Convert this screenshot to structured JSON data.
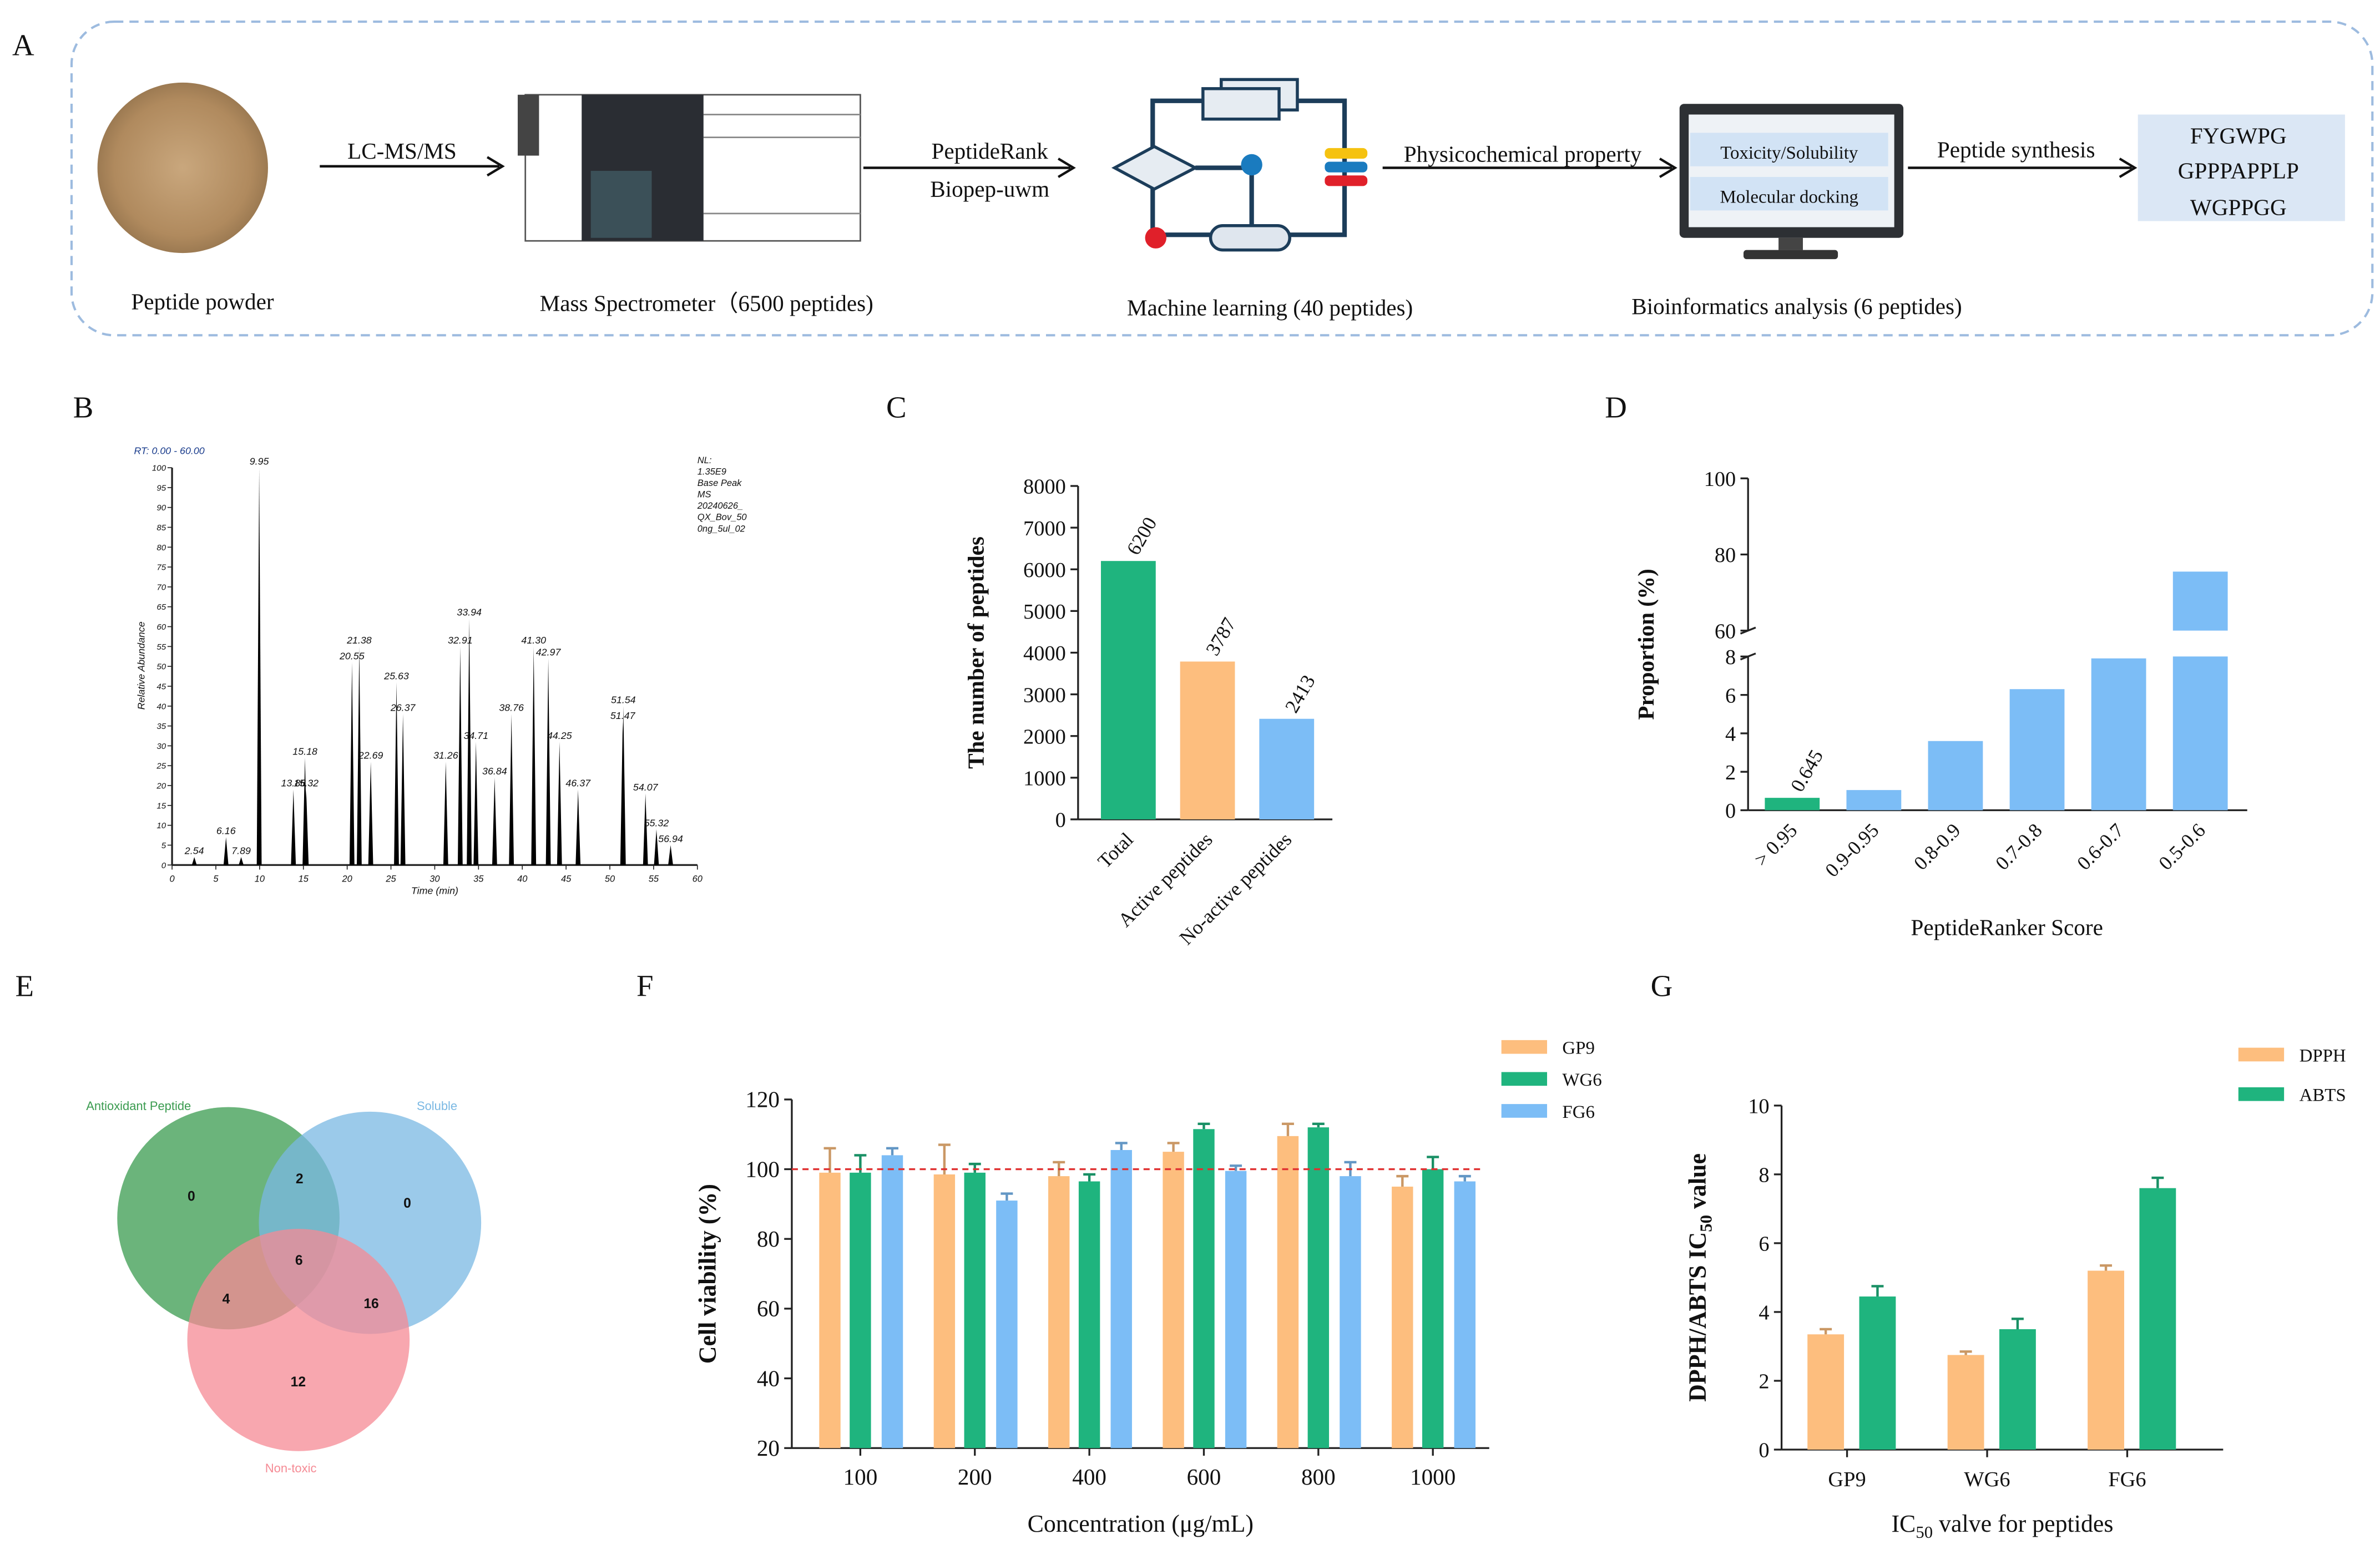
{
  "figure_a": {
    "panel": "A",
    "steps": [
      "Peptide powder",
      "Mass Spectrometer（6500 peptides)",
      "Machine learning (40 peptides)",
      "Bioinformatics analysis (6 peptides)"
    ],
    "arrows": [
      [
        "LC-MS/MS"
      ],
      [
        "PeptideRank",
        "Biopep-uwm"
      ],
      [
        "Physicochemical property"
      ],
      [
        "Peptide synthesis"
      ]
    ],
    "screen": [
      "Toxicity/Solubility",
      "Molecular docking"
    ],
    "peptides": [
      "FYGWPG",
      "GPPPAPPLP",
      "WGPPGG"
    ]
  },
  "chart_data": [
    {
      "panel": "B",
      "type": "line",
      "header": "RT: 0.00 - 60.00",
      "info": [
        "NL:",
        "1.35E9",
        "Base Peak",
        "MS",
        "20240626_",
        "QX_Bov_50",
        "0ng_5ul_02"
      ],
      "x_label": "Time (min)",
      "y_label": "Relative Abundance",
      "x": [
        2.54,
        6.16,
        7.89,
        9.95,
        13.86,
        15.18,
        15.32,
        20.55,
        21.38,
        22.69,
        25.63,
        26.37,
        31.26,
        32.91,
        33.94,
        34.71,
        36.84,
        38.76,
        41.3,
        42.97,
        44.25,
        46.37,
        51.47,
        51.54,
        54.07,
        55.32,
        56.94
      ],
      "peak_labels": [
        "2.54",
        "6.16",
        "7.89",
        "9.95",
        "13.86",
        "15.18",
        "15.32",
        "20.55",
        "21.38",
        "22.69",
        "25.63",
        "26.37",
        "31.26",
        "32.91",
        "33.94",
        "34.71",
        "36.84",
        "38.76",
        "41.30",
        "42.97",
        "44.25",
        "46.37",
        "51.47",
        "51.54",
        "54.07",
        "55.32",
        "56.94"
      ],
      "values": [
        2,
        7,
        2,
        100,
        19,
        27,
        19,
        51,
        55,
        26,
        46,
        38,
        26,
        55,
        62,
        31,
        22,
        38,
        55,
        52,
        31,
        19,
        36,
        40,
        18,
        9,
        5
      ],
      "color": "#000000",
      "xlim": [
        0,
        60
      ],
      "xticks": [
        0,
        5,
        10,
        15,
        20,
        25,
        30,
        35,
        40,
        45,
        50,
        55,
        60
      ],
      "ylim": [
        0,
        100
      ],
      "yticks": [
        0,
        5,
        10,
        15,
        20,
        25,
        30,
        35,
        40,
        45,
        50,
        55,
        60,
        65,
        70,
        75,
        80,
        85,
        90,
        95,
        100
      ]
    },
    {
      "panel": "C",
      "type": "bar",
      "y_label": "The number of peptides",
      "categories": [
        "Total",
        "Active peptides",
        "No-active peptides"
      ],
      "values": [
        6200,
        3787,
        2413
      ],
      "colors": [
        "#1fb47e",
        "#fdbe7e",
        "#7cbdf6"
      ],
      "ylim": [
        0,
        8000
      ],
      "yticks": [
        0,
        1000,
        2000,
        3000,
        4000,
        5000,
        6000,
        7000,
        8000
      ]
    },
    {
      "panel": "D",
      "type": "bar",
      "y_label": "Proportion (%)",
      "x_label": "PeptideRanker Score",
      "categories": [
        "> 0.95",
        "0.9-0.95",
        "0.8-0.9",
        "0.7-0.8",
        "0.6-0.7",
        "0.5-0.6"
      ],
      "values": [
        0.645,
        1.05,
        3.6,
        6.3,
        7.9,
        75.5
      ],
      "value_labels": [
        "0.645",
        null,
        null,
        null,
        null,
        null
      ],
      "colors": [
        "#1fb47e",
        "#7cbdf6",
        "#7cbdf6",
        "#7cbdf6",
        "#7cbdf6",
        "#7cbdf6"
      ],
      "ylim": [
        0,
        100
      ],
      "axis_break": [
        8,
        60
      ],
      "yticks": [
        0,
        2,
        4,
        6,
        8,
        60,
        80,
        100
      ]
    },
    {
      "panel": "E",
      "type": "venn",
      "sets": [
        {
          "name": "Antioxidant Peptide",
          "color": "#3a9b4f"
        },
        {
          "name": "Soluble",
          "color": "#7ab8e3"
        },
        {
          "name": "Non-toxic",
          "color": "#f58a94"
        }
      ],
      "regions": [
        {
          "sets": [
            0
          ],
          "value": 0
        },
        {
          "sets": [
            1
          ],
          "value": 0
        },
        {
          "sets": [
            0,
            1
          ],
          "value": 2
        },
        {
          "sets": [
            0,
            1,
            2
          ],
          "value": 6
        },
        {
          "sets": [
            0,
            2
          ],
          "value": 4
        },
        {
          "sets": [
            1,
            2
          ],
          "value": 16
        },
        {
          "sets": [
            2
          ],
          "value": 12
        }
      ]
    },
    {
      "panel": "F",
      "type": "grouped_bar",
      "y_label": "Cell viability (%)",
      "x_label": "Concentration (μg/mL)",
      "categories": [
        "100",
        "200",
        "400",
        "600",
        "800",
        "1000"
      ],
      "series": [
        {
          "name": "GP9",
          "color": "#fdbe7e",
          "values": [
            99,
            98.5,
            98,
            105,
            109.5,
            95
          ],
          "errors": [
            7,
            8.5,
            4,
            2.5,
            3.5,
            3
          ]
        },
        {
          "name": "WG6",
          "color": "#1fb47e",
          "values": [
            99,
            99,
            96.5,
            111.5,
            112,
            100
          ],
          "errors": [
            5,
            2.5,
            2,
            1.5,
            1,
            3.5
          ]
        },
        {
          "name": "FG6",
          "color": "#7cbdf6",
          "values": [
            104,
            91,
            105.5,
            99.5,
            98,
            96.5
          ],
          "errors": [
            2,
            2,
            2,
            1.5,
            4,
            1.5
          ]
        }
      ],
      "reference_line": 100,
      "reference_color": "#e03030",
      "ylim": [
        20,
        120
      ],
      "yticks": [
        20,
        40,
        60,
        80,
        100,
        120
      ]
    },
    {
      "panel": "G",
      "type": "grouped_bar",
      "y_label": [
        "DPPH/ABTS IC",
        "50",
        " value"
      ],
      "x_label": [
        "IC",
        "50",
        " valve for peptides"
      ],
      "categories": [
        "GP9",
        "WG6",
        "FG6"
      ],
      "series": [
        {
          "name": "DPPH",
          "color": "#fdbe7e",
          "values": [
            3.35,
            2.75,
            5.2
          ],
          "errors": [
            0.15,
            0.1,
            0.15
          ]
        },
        {
          "name": "ABTS",
          "color": "#1fb47e",
          "values": [
            4.45,
            3.5,
            7.6
          ],
          "errors": [
            0.3,
            0.3,
            0.3
          ]
        }
      ],
      "ylim": [
        0,
        10
      ],
      "yticks": [
        0,
        2,
        4,
        6,
        8,
        10
      ]
    }
  ]
}
